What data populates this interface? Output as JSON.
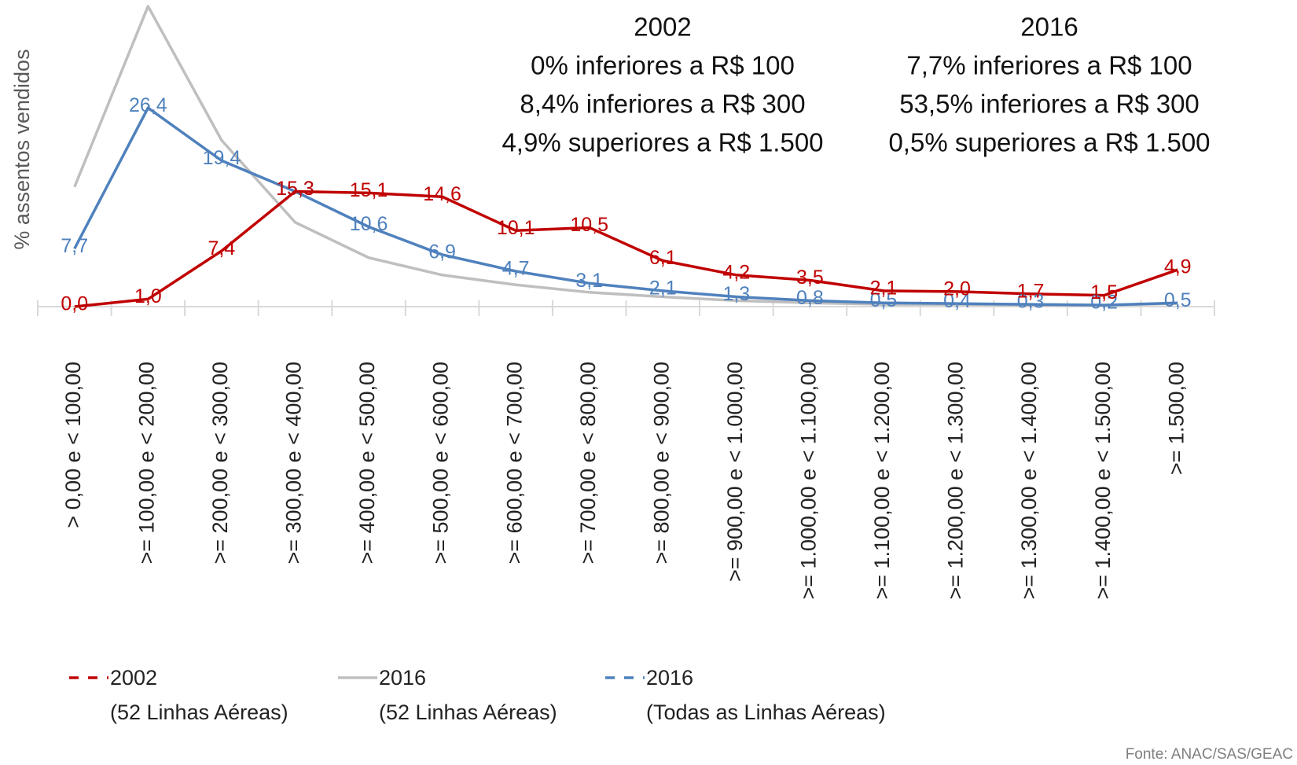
{
  "chart_data": {
    "type": "line",
    "y_axis_label": "% assentos vendidos",
    "categories": [
      "> 0,00 e < 100,00",
      ">= 100,00 e < 200,00",
      ">= 200,00 e < 300,00",
      ">= 300,00 e < 400,00",
      ">= 400,00 e < 500,00",
      ">= 500,00 e < 600,00",
      ">= 600,00 e < 700,00",
      ">= 700,00 e < 800,00",
      ">= 800,00 e < 900,00",
      ">= 900,00 e < 1.000,00",
      ">= 1.000,00 e < 1.100,00",
      ">= 1.100,00 e < 1.200,00",
      ">= 1.200,00 e < 1.300,00",
      ">= 1.300,00 e < 1.400,00",
      ">= 1.400,00 e < 1.500,00",
      ">= 1.500,00"
    ],
    "series": [
      {
        "name": "2002\n(52 Linhas Aéreas)",
        "color": "#c00000",
        "legend_dash": true,
        "values": [
          0.0,
          1.0,
          7.4,
          15.3,
          15.1,
          14.6,
          10.1,
          10.5,
          6.1,
          4.2,
          3.5,
          2.1,
          2.0,
          1.7,
          1.5,
          4.9
        ],
        "value_labels": [
          "0,0",
          "1,0",
          "7,4",
          "15,3",
          "15,1",
          "14,6",
          "10,1",
          "10,5",
          "6,1",
          "4,2",
          "3,5",
          "2,1",
          "2,0",
          "1,7",
          "1,5",
          "4,9"
        ]
      },
      {
        "name": "2016\n(52 Linhas Aéreas)",
        "color": "#bfbfbf",
        "legend_dash": false,
        "values": [
          15.9,
          39.9,
          22.1,
          11.2,
          6.5,
          4.2,
          2.9,
          1.9,
          1.3,
          0.8,
          0.5,
          0.3,
          0.3,
          0.2,
          0.2,
          0.4
        ]
      },
      {
        "name": "2016\n(Todas as Linhas Aéreas)",
        "color": "#4f81bd",
        "legend_dash": true,
        "values": [
          7.7,
          26.4,
          19.4,
          15.3,
          10.6,
          6.9,
          4.7,
          3.1,
          2.1,
          1.3,
          0.8,
          0.5,
          0.4,
          0.3,
          0.2,
          0.5
        ],
        "value_labels": [
          "7,7",
          "26,4",
          "19,4",
          "15,3",
          "10,6",
          "6,9",
          "4,7",
          "3,1",
          "2,1",
          "1,3",
          "0,8",
          "0,5",
          "0,4",
          "0,3",
          "0,2",
          "0,5"
        ]
      }
    ],
    "ylim": [
      0,
      40
    ],
    "annotations": [
      [
        "2002",
        "0% inferiores a R$ 100",
        "8,4% inferiores a R$ 300",
        "4,9% superiores a R$ 1.500"
      ],
      [
        "2016",
        "7,7% inferiores a R$ 100",
        "53,5% inferiores a R$ 300",
        "0,5% superiores a R$ 1.500"
      ]
    ],
    "source": "Fonte: ANAC/SAS/GEAC"
  }
}
